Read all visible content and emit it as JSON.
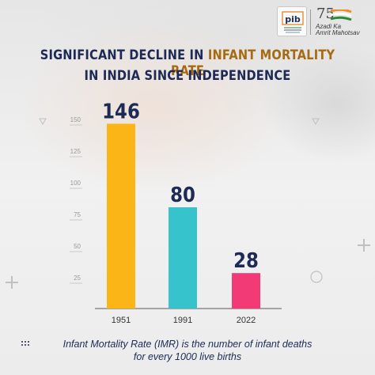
{
  "header": {
    "title_line1_prefix": "SIGNIFICANT DECLINE IN ",
    "title_line1_highlight": "INFANT MORTALITY RATE",
    "title_line2": "IN INDIA SINCE INDEPENDENCE",
    "logo_pib": "pib",
    "aka_number": "75",
    "aka_line1": "Azadi Ka",
    "aka_line2": "Amrit Mahotsav"
  },
  "footer": {
    "line1": "Infant Mortality Rate (IMR) is the number of infant deaths",
    "line2": "for every 1000 live births"
  },
  "colors": {
    "title": "#1c2a55",
    "highlight": "#a66a12",
    "bar_1951": "#fbb516",
    "bar_1991": "#36c3cc",
    "bar_2022": "#f23a77"
  },
  "chart_data": {
    "type": "bar",
    "categories": [
      "1951",
      "1991",
      "2022"
    ],
    "values": [
      146,
      80,
      28
    ],
    "value_labels": [
      "146",
      "80",
      "28"
    ],
    "colors": [
      "#fbb516",
      "#36c3cc",
      "#f23a77"
    ],
    "ylim": [
      0,
      160
    ],
    "yticks": [
      25,
      50,
      75,
      100,
      125,
      150
    ],
    "grid": false,
    "title": "SIGNIFICANT DECLINE IN INFANT MORTALITY RATE IN INDIA SINCE INDEPENDENCE",
    "xlabel": "",
    "ylabel": ""
  }
}
